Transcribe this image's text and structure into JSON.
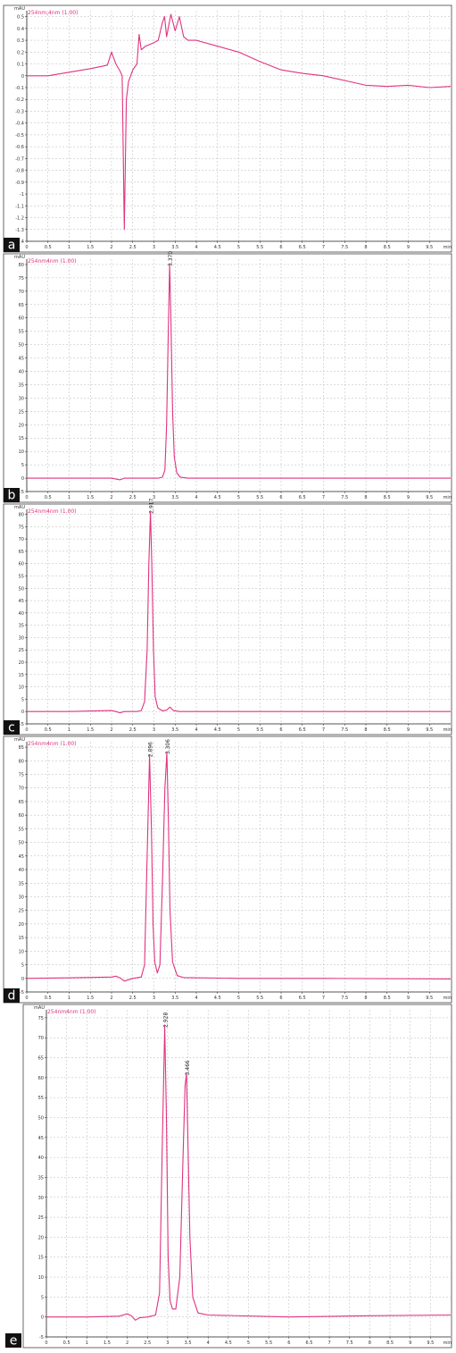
{
  "figure": {
    "line_color": "#e0337f",
    "grid_color": "#b8b8b8",
    "label_bg": "#111111",
    "label_fg": "#ffffff"
  },
  "chart_data": [
    {
      "panel_label": "a",
      "type": "line",
      "unit_label": "mAU",
      "trace_label": "254nm,4nm (1.00)",
      "xlabel": "min",
      "xlim": [
        0,
        10
      ],
      "ylim": [
        -1.4,
        0.55
      ],
      "x_ticks": [
        0,
        0.5,
        1.0,
        1.5,
        2.0,
        2.5,
        3.0,
        3.5,
        4.0,
        4.5,
        5.0,
        5.5,
        6.0,
        6.5,
        7.0,
        7.5,
        8.0,
        8.5,
        9.0,
        9.5
      ],
      "y_ticks": [
        0.5,
        0.4,
        0.3,
        0.2,
        0.1,
        0.0,
        -0.1,
        -0.2,
        -0.3,
        -0.4,
        -0.5,
        -0.6,
        -0.7,
        -0.8,
        -0.9,
        -1.0,
        -1.1,
        -1.2,
        -1.3,
        -1.4
      ],
      "grid": true,
      "peak_labels": [],
      "series": [
        {
          "x": [
            0.0,
            0.5,
            1.0,
            1.5,
            1.9,
            2.0,
            2.1,
            2.2,
            2.25,
            2.3,
            2.35,
            2.4,
            2.5,
            2.6,
            2.65,
            2.7,
            2.8,
            3.0,
            3.1,
            3.2,
            3.25,
            3.3,
            3.4,
            3.5,
            3.6,
            3.7,
            3.8,
            4.0,
            4.5,
            5.0,
            5.5,
            6.0,
            6.5,
            7.0,
            7.5,
            8.0,
            8.5,
            9.0,
            9.5,
            10.0
          ],
          "y": [
            0.0,
            0.0,
            0.03,
            0.06,
            0.09,
            0.2,
            0.1,
            0.04,
            0.0,
            -1.3,
            -0.2,
            -0.05,
            0.05,
            0.1,
            0.35,
            0.22,
            0.25,
            0.28,
            0.3,
            0.45,
            0.5,
            0.33,
            0.52,
            0.38,
            0.5,
            0.33,
            0.3,
            0.3,
            0.25,
            0.2,
            0.12,
            0.05,
            0.02,
            0.0,
            -0.04,
            -0.08,
            -0.09,
            -0.08,
            -0.1,
            -0.09
          ]
        }
      ]
    },
    {
      "panel_label": "b",
      "type": "line",
      "unit_label": "mAU",
      "trace_label": "254nm4nm (1.00)",
      "xlabel": "min",
      "xlim": [
        0,
        10
      ],
      "ylim": [
        -5,
        82
      ],
      "x_ticks": [
        0,
        0.5,
        1.0,
        1.5,
        2.0,
        2.5,
        3.0,
        3.5,
        4.0,
        4.5,
        5.0,
        5.5,
        6.0,
        6.5,
        7.0,
        7.5,
        8.0,
        8.5,
        9.0,
        9.5
      ],
      "y_ticks": [
        80,
        75,
        70,
        65,
        60,
        55,
        50,
        45,
        40,
        35,
        30,
        25,
        20,
        15,
        10,
        5,
        0,
        -5
      ],
      "grid": true,
      "peak_labels": [
        {
          "text": "3.370",
          "x": 3.37,
          "y": 80
        }
      ],
      "series": [
        {
          "x": [
            0.0,
            1.0,
            2.0,
            2.2,
            2.3,
            2.4,
            3.1,
            3.2,
            3.26,
            3.3,
            3.34,
            3.37,
            3.4,
            3.44,
            3.48,
            3.54,
            3.62,
            3.8,
            5.0,
            7.0,
            10.0
          ],
          "y": [
            0.0,
            0.0,
            0.0,
            -0.6,
            0.0,
            0.0,
            0.0,
            0.4,
            3.0,
            20.0,
            55.0,
            80.0,
            60.0,
            25.0,
            8.0,
            2.0,
            0.4,
            0.0,
            0.0,
            0.0,
            0.0
          ]
        }
      ]
    },
    {
      "panel_label": "c",
      "type": "line",
      "unit_label": "mAU",
      "trace_label": "254nm4nm (1.00)",
      "xlabel": "min",
      "xlim": [
        0,
        10
      ],
      "ylim": [
        -5,
        82
      ],
      "x_ticks": [
        0,
        0.5,
        1.0,
        1.5,
        2.0,
        2.5,
        3.0,
        3.5,
        4.0,
        4.5,
        5.0,
        5.5,
        6.0,
        6.5,
        7.0,
        7.5,
        8.0,
        8.5,
        9.0,
        9.5
      ],
      "y_ticks": [
        80,
        75,
        70,
        65,
        60,
        55,
        50,
        45,
        40,
        35,
        30,
        25,
        20,
        15,
        10,
        5,
        0,
        -5
      ],
      "grid": true,
      "peak_labels": [
        {
          "text": "2.917",
          "x": 2.917,
          "y": 81
        }
      ],
      "series": [
        {
          "x": [
            0.0,
            1.0,
            2.0,
            2.1,
            2.2,
            2.3,
            2.6,
            2.7,
            2.78,
            2.84,
            2.88,
            2.917,
            2.95,
            2.99,
            3.03,
            3.09,
            3.2,
            3.3,
            3.38,
            3.46,
            3.6,
            5.0,
            7.0,
            10.0
          ],
          "y": [
            0.0,
            0.0,
            0.4,
            0.0,
            -0.5,
            0.0,
            0.0,
            0.4,
            4.0,
            25.0,
            60.0,
            81.0,
            60.0,
            25.0,
            6.0,
            1.5,
            0.3,
            0.6,
            1.8,
            0.4,
            0.0,
            0.0,
            0.0,
            0.0
          ]
        }
      ]
    },
    {
      "panel_label": "d",
      "type": "line",
      "unit_label": "mAU",
      "trace_label": "254nm4nm (1.00)",
      "xlabel": "min",
      "xlim": [
        0,
        10
      ],
      "ylim": [
        -5,
        87
      ],
      "x_ticks": [
        0,
        0.5,
        1.0,
        1.5,
        2.0,
        2.5,
        3.0,
        3.5,
        4.0,
        4.5,
        5.0,
        5.5,
        6.0,
        6.5,
        7.0,
        7.5,
        8.0,
        8.5,
        9.0,
        9.5
      ],
      "y_ticks": [
        85,
        80,
        75,
        70,
        65,
        60,
        55,
        50,
        45,
        40,
        35,
        30,
        25,
        20,
        15,
        10,
        5,
        0,
        -5
      ],
      "grid": true,
      "peak_labels": [
        {
          "text": "2.896",
          "x": 2.896,
          "y": 82
        },
        {
          "text": "3.306",
          "x": 3.306,
          "y": 83
        }
      ],
      "series": [
        {
          "x": [
            0.0,
            1.0,
            2.0,
            2.1,
            2.2,
            2.3,
            2.5,
            2.7,
            2.78,
            2.84,
            2.896,
            2.94,
            2.98,
            3.02,
            3.08,
            3.14,
            3.2,
            3.26,
            3.306,
            3.34,
            3.38,
            3.44,
            3.55,
            3.7,
            5.0,
            7.0,
            10.0
          ],
          "y": [
            0.0,
            0.2,
            0.5,
            0.8,
            0.2,
            -1.0,
            0.0,
            0.5,
            5.0,
            45.0,
            82.0,
            55.0,
            20.0,
            6.0,
            2.0,
            5.0,
            35.0,
            70.0,
            83.0,
            60.0,
            25.0,
            6.0,
            1.0,
            0.3,
            0.0,
            0.0,
            -0.2
          ]
        }
      ]
    },
    {
      "panel_label": "e",
      "type": "line",
      "unit_label": "mAU",
      "trace_label": "254nm4nm (1.00)",
      "xlabel": "min",
      "xlim": [
        0,
        10
      ],
      "ylim": [
        -5,
        77
      ],
      "x_ticks": [
        0,
        0.5,
        1.0,
        1.5,
        2.0,
        2.5,
        3.0,
        3.5,
        4.0,
        4.5,
        5.0,
        5.5,
        6.0,
        6.5,
        7.0,
        7.5,
        8.0,
        8.5,
        9.0,
        9.5
      ],
      "y_ticks": [
        75,
        70,
        65,
        60,
        55,
        50,
        45,
        40,
        35,
        30,
        25,
        20,
        15,
        10,
        5,
        0,
        -5
      ],
      "grid": true,
      "peak_labels": [
        {
          "text": "2.928",
          "x": 2.928,
          "y": 73
        },
        {
          "text": "3.466",
          "x": 3.466,
          "y": 61
        }
      ],
      "series": [
        {
          "x": [
            0.0,
            1.0,
            1.8,
            2.0,
            2.1,
            2.2,
            2.3,
            2.5,
            2.7,
            2.8,
            2.86,
            2.928,
            2.97,
            3.01,
            3.06,
            3.12,
            3.2,
            3.3,
            3.38,
            3.43,
            3.466,
            3.5,
            3.55,
            3.62,
            3.75,
            4.0,
            6.0,
            8.0,
            10.0
          ],
          "y": [
            0.0,
            0.0,
            0.2,
            0.8,
            0.3,
            -0.8,
            -0.2,
            0.0,
            0.5,
            6.0,
            40.0,
            73.0,
            50.0,
            15.0,
            4.0,
            2.0,
            2.0,
            10.0,
            40.0,
            58.0,
            61.0,
            45.0,
            20.0,
            5.0,
            1.0,
            0.5,
            0.0,
            0.3,
            0.5
          ]
        }
      ]
    }
  ]
}
